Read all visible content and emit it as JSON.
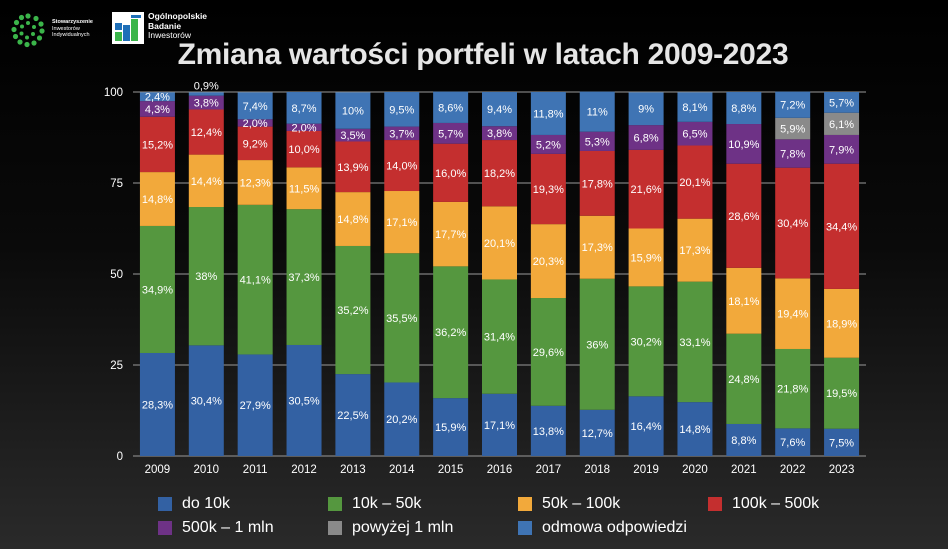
{
  "header": {
    "logo1_lines": [
      "Stowarzyszenie",
      "Inwestorów",
      "Indywidualnych"
    ],
    "logo2_lines": [
      "Ogólnopolskie",
      "Badanie",
      "Inwestorów"
    ]
  },
  "colors": {
    "do_10k": "#3361a3",
    "10k_50k": "#55973f",
    "50k_100k": "#f2a93b",
    "100k_500k": "#c42f2f",
    "500k_1mln": "#6e3286",
    "powyzej_1mln": "#8a8a8a",
    "odmowa": "#3f74b4"
  },
  "chart_data": {
    "type": "bar",
    "stacked": true,
    "title": "Zmiana wartości portfeli w latach 2009-2023",
    "categories": [
      "2009",
      "2010",
      "2011",
      "2012",
      "2013",
      "2014",
      "2015",
      "2016",
      "2017",
      "2018",
      "2019",
      "2020",
      "2021",
      "2022",
      "2023"
    ],
    "ylim": [
      0,
      100
    ],
    "yticks": [
      0,
      25,
      50,
      75,
      100
    ],
    "grid": true,
    "legend_position": "bottom",
    "series": [
      {
        "name": "do 10k",
        "color_key": "do_10k",
        "values": [
          28.3,
          30.4,
          27.9,
          30.5,
          22.5,
          20.2,
          15.9,
          17.1,
          13.8,
          12.7,
          16.4,
          14.8,
          8.8,
          7.6,
          7.5
        ],
        "labels": [
          "28,3%",
          "30,4%",
          "27,9%",
          "30,5%",
          "22,5%",
          "20,2%",
          "15,9%",
          "17,1%",
          "13,8%",
          "12,7%",
          "16,4%",
          "14,8%",
          "8,8%",
          "7,6%",
          "7,5%"
        ]
      },
      {
        "name": "10k – 50k",
        "color_key": "10k_50k",
        "values": [
          34.9,
          38,
          41.1,
          37.3,
          35.2,
          35.5,
          36.2,
          31.4,
          29.6,
          36,
          30.2,
          33.1,
          24.8,
          21.8,
          19.5
        ],
        "labels": [
          "34,9%",
          "38%",
          "41,1%",
          "37,3%",
          "35,2%",
          "35,5%",
          "36,2%",
          "31,4%",
          "29,6%",
          "36%",
          "30,2%",
          "33,1%",
          "24,8%",
          "21,8%",
          "19,5%"
        ]
      },
      {
        "name": "50k – 100k",
        "color_key": "50k_100k",
        "values": [
          14.8,
          14.4,
          12.3,
          11.5,
          14.8,
          17.1,
          17.7,
          20.1,
          20.3,
          17.3,
          15.9,
          17.3,
          18.1,
          19.4,
          18.9
        ],
        "labels": [
          "14,8%",
          "14,4%",
          "12,3%",
          "11,5%",
          "14,8%",
          "17,1%",
          "17,7%",
          "20,1%",
          "20,3%",
          "17,3%",
          "15,9%",
          "17,3%",
          "18,1%",
          "19,4%",
          "18,9%"
        ]
      },
      {
        "name": "100k – 500k",
        "color_key": "100k_500k",
        "values": [
          15.2,
          12.4,
          9.2,
          10,
          13.9,
          14,
          16,
          18.2,
          19.3,
          17.8,
          21.6,
          20.1,
          28.6,
          30.4,
          34.4
        ],
        "labels": [
          "15,2%",
          "12,4%",
          "9,2%",
          "10,0%",
          "13,9%",
          "14,0%",
          "16,0%",
          "18,2%",
          "19,3%",
          "17,8%",
          "21,6%",
          "20,1%",
          "28,6%",
          "30,4%",
          "34,4%"
        ]
      },
      {
        "name": "500k – 1 mln",
        "color_key": "500k_1mln",
        "values": [
          4.3,
          3.8,
          2,
          2,
          3.5,
          3.7,
          5.7,
          3.8,
          5.2,
          5.3,
          6.8,
          6.5,
          10.9,
          7.8,
          7.9
        ],
        "labels": [
          "4,3%",
          "3,8%",
          "2,0%",
          "2,0%",
          "3,5%",
          "3,7%",
          "5,7%",
          "3,8%",
          "5,2%",
          "5,3%",
          "6,8%",
          "6,5%",
          "10,9%",
          "7,8%",
          "7,9%"
        ]
      },
      {
        "name": "powyżej 1 mln",
        "color_key": "powyzej_1mln",
        "values": [
          0,
          0,
          0,
          0,
          0,
          0,
          0,
          0,
          0,
          0,
          0,
          0,
          0,
          5.9,
          6.1
        ],
        "labels": [
          "",
          "",
          "",
          "",
          "",
          "",
          "",
          "",
          "",
          "",
          "",
          "",
          "",
          "5,9%",
          "6,1%"
        ]
      },
      {
        "name": "odmowa odpowiedzi",
        "color_key": "odmowa",
        "values": [
          2.4,
          0.9,
          7.4,
          8.7,
          10,
          9.5,
          8.6,
          9.4,
          11.8,
          11,
          9,
          8.1,
          8.8,
          7.2,
          5.7
        ],
        "labels": [
          "2,4%",
          "0,9%",
          "7,4%",
          "8,7%",
          "10%",
          "9,5%",
          "8,6%",
          "9,4%",
          "11,8%",
          "11%",
          "9%",
          "8,1%",
          "8,8%",
          "7,2%",
          "5,7%"
        ]
      }
    ]
  },
  "legend": [
    {
      "label": "do 10k",
      "color_key": "do_10k"
    },
    {
      "label": "10k – 50k",
      "color_key": "10k_50k"
    },
    {
      "label": "50k – 100k",
      "color_key": "50k_100k"
    },
    {
      "label": "100k – 500k",
      "color_key": "100k_500k"
    },
    {
      "label": "500k – 1 mln",
      "color_key": "500k_1mln"
    },
    {
      "label": "powyżej 1 mln",
      "color_key": "powyzej_1mln"
    },
    {
      "label": "odmowa odpowiedzi",
      "color_key": "odmowa"
    }
  ]
}
